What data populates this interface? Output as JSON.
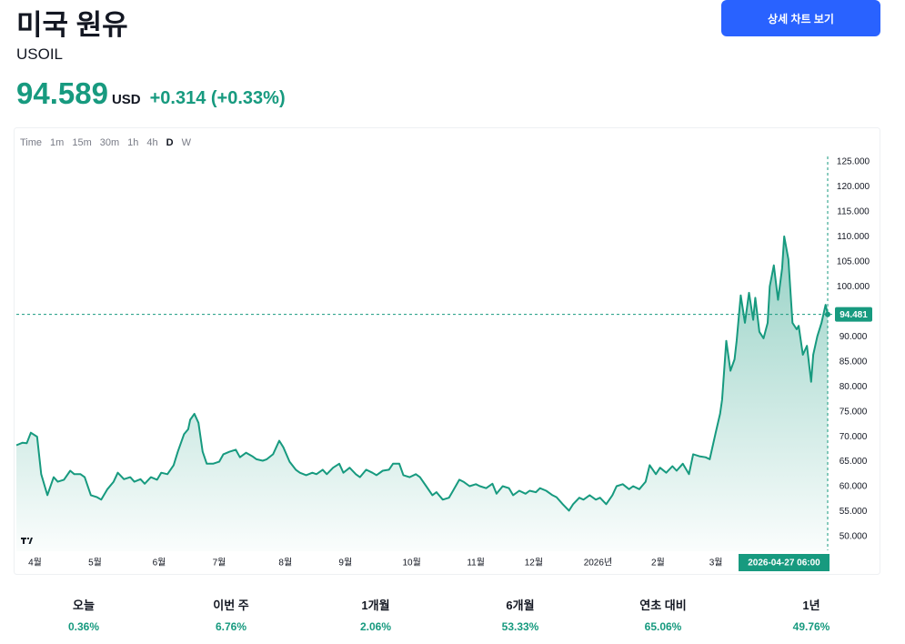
{
  "header": {
    "title": "미국 원유",
    "symbol": "USOIL",
    "price": "94.589",
    "currency": "USD",
    "change": "+0.314 (+0.33%)",
    "button": "상세 차트 보기"
  },
  "toolbar": {
    "items": [
      "Time",
      "1m",
      "15m",
      "30m",
      "1h",
      "4h",
      "D",
      "W"
    ],
    "active": 6
  },
  "chart_data": {
    "type": "area",
    "color": "#179a7f",
    "x": [
      0,
      3,
      5,
      7,
      10,
      12,
      15,
      18,
      20,
      23,
      26,
      28,
      31,
      33,
      36,
      39,
      41,
      44,
      47,
      49,
      52,
      55,
      57,
      60,
      62,
      65,
      68,
      70,
      73,
      76,
      78,
      81,
      83,
      84,
      86,
      88,
      90,
      92,
      95,
      98,
      100,
      103,
      106,
      108,
      111,
      114,
      116,
      119,
      121,
      124,
      127,
      129,
      132,
      135,
      137,
      140,
      143,
      145,
      148,
      150,
      153,
      156,
      158,
      161,
      164,
      166,
      169,
      172,
      174,
      177,
      180,
      182,
      185,
      187,
      190,
      193,
      195,
      198,
      201,
      203,
      206,
      209,
      211,
      214,
      216,
      219,
      222,
      224,
      227,
      230,
      232,
      235,
      238,
      240,
      243,
      246,
      248,
      251,
      253,
      256,
      259,
      261,
      264,
      267,
      269,
      272,
      274,
      277,
      280,
      282,
      285,
      288,
      290,
      293,
      296,
      298,
      301,
      304,
      306,
      309,
      311,
      314,
      317,
      319,
      322,
      325,
      327,
      330,
      333,
      335,
      338,
      340,
      341,
      343,
      345,
      347,
      348,
      350,
      352,
      354,
      356,
      357,
      359,
      361,
      363,
      364,
      366,
      368,
      370,
      371,
      373,
      375,
      377,
      378,
      380,
      382,
      384,
      385,
      387,
      389,
      391,
      392
    ],
    "values": [
      68.3,
      68.8,
      68.7,
      70.8,
      70,
      62.5,
      58.3,
      61.9,
      61,
      61.4,
      63.2,
      62.5,
      62.5,
      61.9,
      58.3,
      57.9,
      57.4,
      59.5,
      61,
      62.8,
      61.5,
      61.9,
      61,
      61.5,
      60.6,
      61.9,
      61.4,
      62.8,
      62.5,
      64.3,
      67,
      70.5,
      71.5,
      73.4,
      74.6,
      72.8,
      67,
      64.6,
      64.6,
      65,
      66.5,
      67,
      67.4,
      65.9,
      66.8,
      66.1,
      65.5,
      65.2,
      65.5,
      66.5,
      69.2,
      67.9,
      65,
      63.4,
      62.8,
      62.3,
      62.8,
      62.5,
      63.4,
      62.5,
      63.8,
      64.6,
      62.8,
      63.8,
      62.5,
      61.9,
      63.4,
      62.8,
      62.3,
      63.2,
      63.4,
      64.6,
      64.6,
      62.3,
      61.9,
      62.5,
      61.9,
      60.1,
      58.3,
      58.9,
      57.4,
      57.8,
      59.2,
      61.4,
      61,
      60.1,
      60.5,
      60.1,
      59.7,
      60.6,
      58.6,
      60.1,
      59.7,
      58.3,
      59.2,
      58.6,
      59.2,
      58.9,
      59.7,
      59.2,
      58.3,
      57.9,
      56.5,
      55.2,
      56.5,
      57.8,
      57.4,
      58.3,
      57.4,
      57.8,
      56.5,
      58.3,
      60.1,
      60.5,
      59.5,
      60.1,
      59.5,
      61,
      64.3,
      62.5,
      63.8,
      62.8,
      64.1,
      63.2,
      64.6,
      62.5,
      66.5,
      66.1,
      65.9,
      65.5,
      71,
      74.6,
      77.4,
      89.2,
      83.2,
      85.5,
      89.2,
      98.3,
      92.8,
      98.8,
      93.4,
      97.8,
      91,
      89.7,
      92.8,
      100.1,
      104.3,
      97.4,
      103.7,
      110.1,
      105.5,
      92.8,
      91.5,
      92.2,
      86.4,
      88.2,
      81,
      86.4,
      90.1,
      92.8,
      96.4,
      94.6
    ],
    "xlim": [
      0,
      392
    ],
    "ylim": [
      50,
      125
    ],
    "yticks": [
      {
        "value": 50,
        "label": "50.000"
      },
      {
        "value": 55,
        "label": "55.000"
      },
      {
        "value": 60,
        "label": "60.000"
      },
      {
        "value": 65,
        "label": "65.000"
      },
      {
        "value": 70,
        "label": "70.000"
      },
      {
        "value": 75,
        "label": "75.000"
      },
      {
        "value": 80,
        "label": "80.000"
      },
      {
        "value": 85,
        "label": "85.000"
      },
      {
        "value": 90,
        "label": "90.000"
      },
      {
        "value": 95,
        "label": "95.000"
      },
      {
        "value": 100,
        "label": "100.000"
      },
      {
        "value": 105,
        "label": "105.000"
      },
      {
        "value": 110,
        "label": "110.000"
      },
      {
        "value": 115,
        "label": "115.000"
      },
      {
        "value": 120,
        "label": "120.000"
      },
      {
        "value": 125,
        "label": "125.000"
      }
    ],
    "xticks": [
      {
        "value": 9,
        "label": "4월"
      },
      {
        "value": 38,
        "label": "5월"
      },
      {
        "value": 69,
        "label": "6월"
      },
      {
        "value": 98,
        "label": "7월"
      },
      {
        "value": 130,
        "label": "8월"
      },
      {
        "value": 159,
        "label": "9월"
      },
      {
        "value": 191,
        "label": "10월"
      },
      {
        "value": 222,
        "label": "11월"
      },
      {
        "value": 250,
        "label": "12월"
      },
      {
        "value": 281,
        "label": "2026년"
      },
      {
        "value": 310,
        "label": "2월"
      },
      {
        "value": 338,
        "label": "3월"
      }
    ],
    "last_price": 94.481,
    "cursor_label": "2026-04-27 06:00"
  },
  "stats": [
    {
      "label": "오늘",
      "value": "0.36%"
    },
    {
      "label": "이번 주",
      "value": "6.76%"
    },
    {
      "label": "1개월",
      "value": "2.06%"
    },
    {
      "label": "6개월",
      "value": "53.33%"
    },
    {
      "label": "연초 대비",
      "value": "65.06%"
    },
    {
      "label": "1년",
      "value": "49.76%"
    }
  ]
}
